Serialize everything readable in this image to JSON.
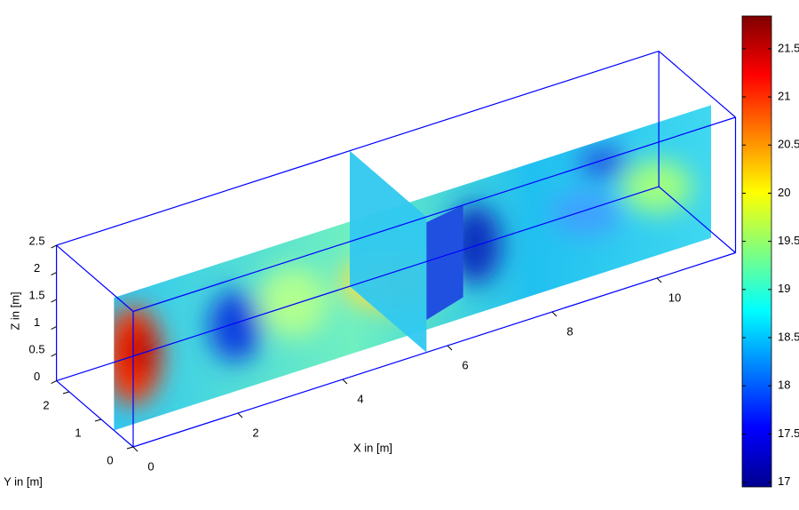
{
  "chart_data": {
    "type": "slice3d",
    "xlabel": "X in [m]",
    "ylabel": "Y in [m]",
    "zlabel": "Z in [m]",
    "xlim": [
      0,
      11.5
    ],
    "ylim": [
      0,
      2.4
    ],
    "zlim": [
      0,
      2.5
    ],
    "xticks": [
      0,
      2,
      4,
      6,
      8,
      10
    ],
    "yticks": [
      0,
      1,
      2
    ],
    "zticks": [
      0,
      0.5,
      1,
      1.5,
      2,
      2.5
    ],
    "box_color": "#0000ff",
    "colorbar": {
      "colormap": "jet",
      "lim": [
        16.95,
        21.84
      ],
      "ticks": [
        17,
        17.5,
        18,
        18.5,
        19,
        19.5,
        20,
        20.5,
        21,
        21.5
      ]
    }
  }
}
